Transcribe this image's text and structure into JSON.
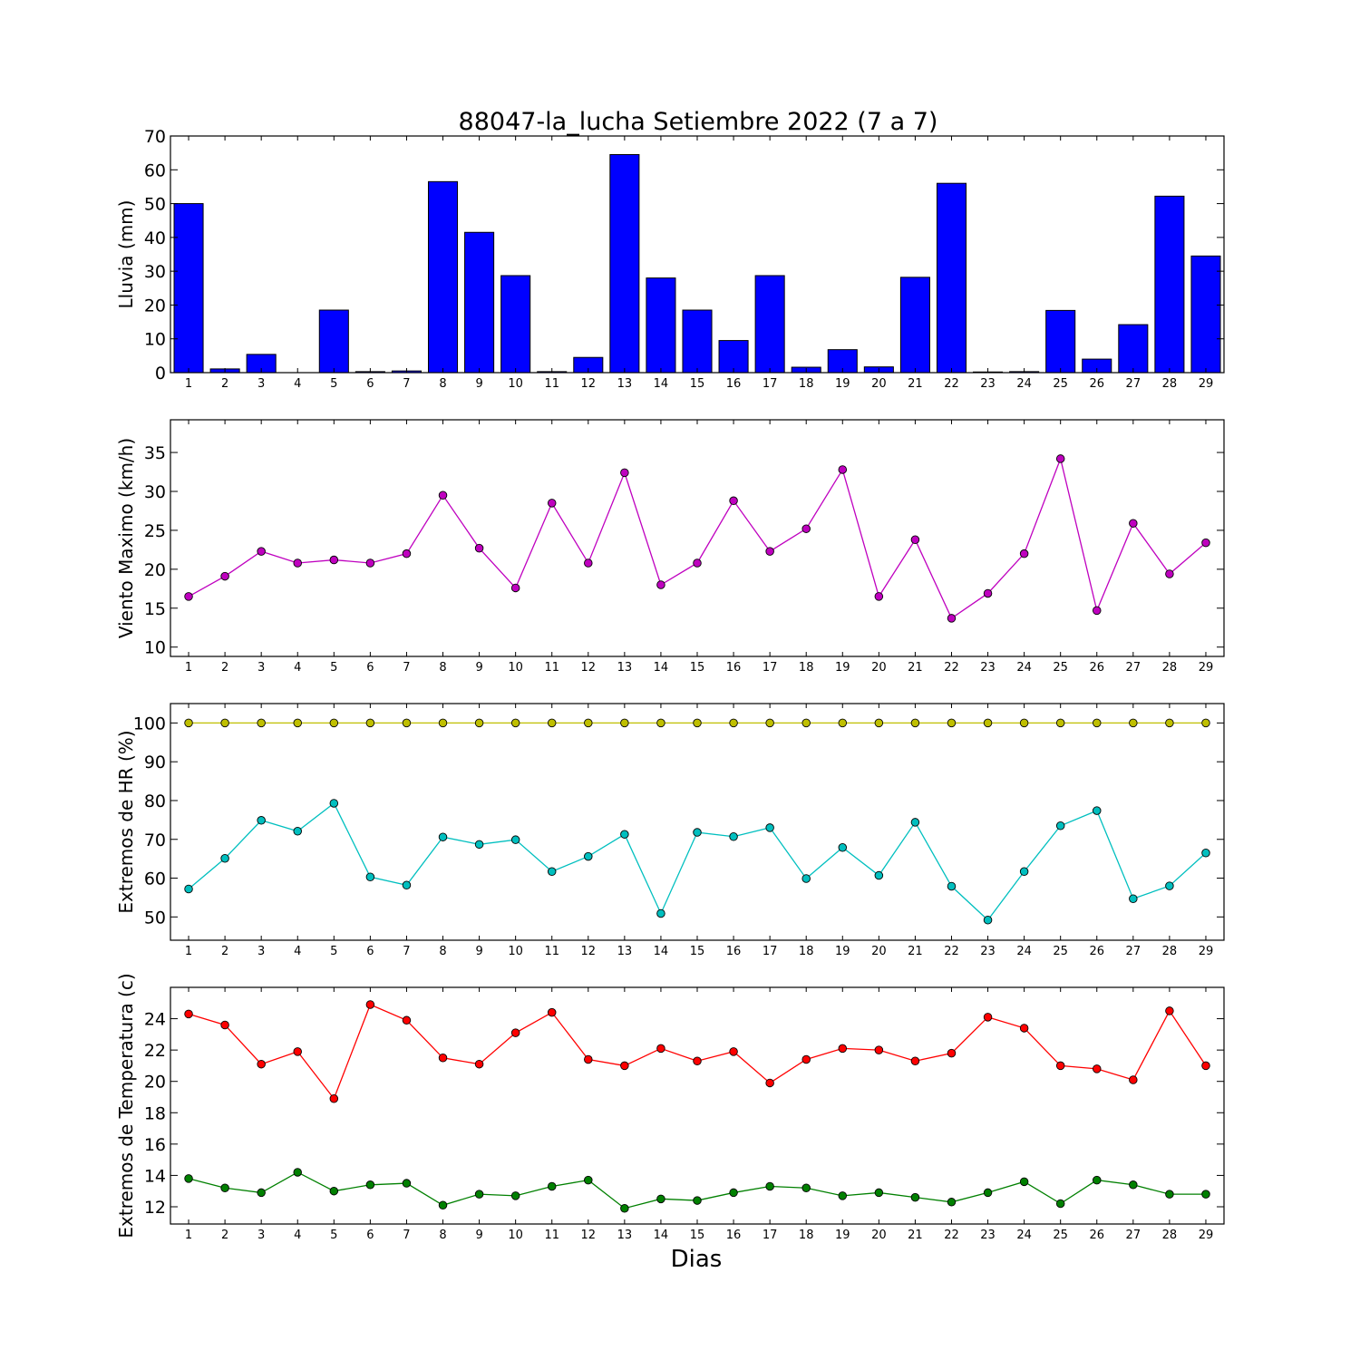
{
  "title": "88047-la_lucha Setiembre 2022  (7 a 7)",
  "xlabel": "Dias",
  "chart_data": [
    {
      "type": "bar",
      "ylabel": "Lluvia (mm)",
      "ylim": [
        0,
        70
      ],
      "yticks": [
        0,
        10,
        20,
        30,
        40,
        50,
        60,
        70
      ],
      "x": [
        1,
        2,
        3,
        4,
        5,
        6,
        7,
        8,
        9,
        10,
        11,
        12,
        13,
        14,
        15,
        16,
        17,
        18,
        19,
        20,
        21,
        22,
        23,
        24,
        25,
        26,
        27,
        28,
        29
      ],
      "series": [
        {
          "color": "#0000ff",
          "values": [
            50.0,
            1.1,
            5.4,
            0.0,
            18.5,
            0.3,
            0.5,
            56.5,
            41.5,
            28.7,
            0.3,
            4.5,
            64.5,
            28.0,
            18.5,
            9.5,
            28.7,
            1.6,
            6.8,
            1.7,
            28.2,
            56.0,
            0.2,
            0.3,
            18.4,
            4.0,
            14.2,
            52.2,
            34.5
          ]
        }
      ]
    },
    {
      "type": "line",
      "ylabel": "Viento Maximo (km/h)",
      "ylim": [
        8.8,
        39.2
      ],
      "yticks": [
        10,
        15,
        20,
        25,
        30,
        35
      ],
      "x": [
        1,
        2,
        3,
        4,
        5,
        6,
        7,
        8,
        9,
        10,
        11,
        12,
        13,
        14,
        15,
        16,
        17,
        18,
        19,
        20,
        21,
        22,
        23,
        24,
        25,
        26,
        27,
        28,
        29
      ],
      "series": [
        {
          "color": "#bf00bf",
          "values": [
            16.5,
            19.1,
            22.3,
            20.8,
            21.2,
            20.8,
            22.0,
            29.5,
            22.7,
            17.6,
            28.5,
            20.8,
            32.4,
            18.0,
            20.8,
            28.8,
            22.3,
            25.2,
            32.8,
            16.5,
            23.8,
            13.7,
            16.9,
            22.0,
            34.2,
            14.7,
            25.9,
            19.4,
            23.4
          ]
        }
      ]
    },
    {
      "type": "line",
      "ylabel": "Extremos de HR (%)",
      "ylim": [
        44,
        105
      ],
      "yticks": [
        50,
        60,
        70,
        80,
        90,
        100
      ],
      "x": [
        1,
        2,
        3,
        4,
        5,
        6,
        7,
        8,
        9,
        10,
        11,
        12,
        13,
        14,
        15,
        16,
        17,
        18,
        19,
        20,
        21,
        22,
        23,
        24,
        25,
        26,
        27,
        28,
        29
      ],
      "series": [
        {
          "color": "#bfbf00",
          "values": [
            100,
            100,
            100,
            100,
            100,
            100,
            100,
            100,
            100,
            100,
            100,
            100,
            100,
            100,
            100,
            100,
            100,
            100,
            100,
            100,
            100,
            100,
            100,
            100,
            100,
            100,
            100,
            100,
            100
          ]
        },
        {
          "color": "#00bfbf",
          "values": [
            57.2,
            65.1,
            74.9,
            72.1,
            79.3,
            60.3,
            58.2,
            70.6,
            68.7,
            69.9,
            61.7,
            65.6,
            71.3,
            50.9,
            71.8,
            70.7,
            73.0,
            59.9,
            67.9,
            60.7,
            74.4,
            57.9,
            49.2,
            61.7,
            73.5,
            77.4,
            54.7,
            58.0,
            66.5
          ]
        }
      ]
    },
    {
      "type": "line",
      "ylabel": "Extremos de Temperatura (c)",
      "ylim": [
        10.9,
        26.0
      ],
      "yticks": [
        12,
        14,
        16,
        18,
        20,
        22,
        24
      ],
      "x": [
        1,
        2,
        3,
        4,
        5,
        6,
        7,
        8,
        9,
        10,
        11,
        12,
        13,
        14,
        15,
        16,
        17,
        18,
        19,
        20,
        21,
        22,
        23,
        24,
        25,
        26,
        27,
        28,
        29
      ],
      "series": [
        {
          "color": "#ff0000",
          "values": [
            24.3,
            23.6,
            21.1,
            21.9,
            18.9,
            24.9,
            23.9,
            21.5,
            21.1,
            23.1,
            24.4,
            21.4,
            21.0,
            22.1,
            21.3,
            21.9,
            19.9,
            21.4,
            22.1,
            22.0,
            21.3,
            21.8,
            24.1,
            23.4,
            21.0,
            20.8,
            20.1,
            24.5,
            21.0
          ]
        },
        {
          "color": "#008000",
          "values": [
            13.8,
            13.2,
            12.9,
            14.2,
            13.0,
            13.4,
            13.5,
            12.1,
            12.8,
            12.7,
            13.3,
            13.7,
            11.9,
            12.5,
            12.4,
            12.9,
            13.3,
            13.2,
            12.7,
            12.9,
            12.6,
            12.3,
            12.9,
            13.6,
            12.2,
            13.7,
            13.4,
            12.8,
            12.8
          ]
        }
      ]
    }
  ]
}
